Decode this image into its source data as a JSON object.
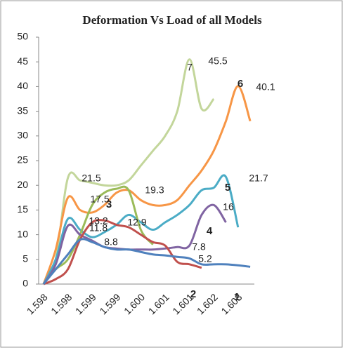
{
  "chart_data": {
    "type": "line",
    "title": "Deformation Vs Load of all Models",
    "categories": [
      "1.598",
      null,
      "1.598",
      null,
      "1.599",
      null,
      "1.599",
      null,
      "1.600",
      null,
      "1.601",
      null,
      "1.601",
      null,
      "1.602",
      null,
      "1.603",
      null
    ],
    "ylim": [
      0,
      50
    ],
    "yticks": [
      0,
      5,
      10,
      15,
      20,
      25,
      30,
      35,
      40,
      45,
      50
    ],
    "grid": false,
    "series": [
      {
        "name": "7",
        "color": "#c3d69b",
        "values": [
          0,
          5,
          21.5,
          21,
          20.5,
          20,
          20,
          21,
          24,
          27,
          30,
          35,
          45.5,
          35.5,
          37.5,
          null,
          null,
          null
        ]
      },
      {
        "name": "6",
        "color": "#f79646",
        "values": [
          0,
          7,
          17.5,
          15,
          14.5,
          16,
          18.5,
          19,
          17,
          16,
          16,
          17,
          20,
          23,
          27,
          33,
          40.1,
          33
        ]
      },
      {
        "name": "5",
        "color": "#4bacc6",
        "values": [
          0,
          5,
          13.2,
          11,
          9.5,
          10.5,
          12,
          14,
          12.5,
          11,
          12.5,
          14,
          16,
          19,
          19.5,
          21.7,
          11.5,
          null
        ]
      },
      {
        "name": "3",
        "color": "#9bbb59",
        "values": [
          0,
          3,
          5,
          10,
          16,
          18.5,
          19.3,
          19,
          11,
          8,
          null,
          null,
          null,
          null,
          null,
          null,
          null,
          null
        ]
      },
      {
        "name": "4",
        "color": "#8064a2",
        "values": [
          0,
          4,
          11.8,
          10,
          8.8,
          7.5,
          7.2,
          7,
          7,
          7,
          7.2,
          7.5,
          7.8,
          14,
          16,
          12.5,
          null,
          null
        ]
      },
      {
        "name": "2",
        "color": "#c0504d",
        "values": [
          0,
          1,
          3,
          9,
          12.5,
          12.9,
          12,
          11.5,
          10,
          8.5,
          7.8,
          4.5,
          4,
          3.3,
          null,
          null,
          null,
          null
        ]
      },
      {
        "name": "1",
        "color": "#4f81bd",
        "values": [
          0,
          3,
          6,
          9,
          8.5,
          7.5,
          7,
          7,
          6.5,
          6,
          5.8,
          5.5,
          5.2,
          4,
          4,
          4,
          3.8,
          3.5
        ]
      }
    ],
    "annotations": [
      "45.5",
      "7",
      "40.1",
      "6",
      "21.7",
      "5",
      "21.5",
      "19.3",
      "17.5",
      "3",
      "16",
      "13.2",
      "12.9",
      "11.8",
      "4",
      "8.8",
      "7.8",
      "5.2",
      "2",
      "1"
    ]
  }
}
